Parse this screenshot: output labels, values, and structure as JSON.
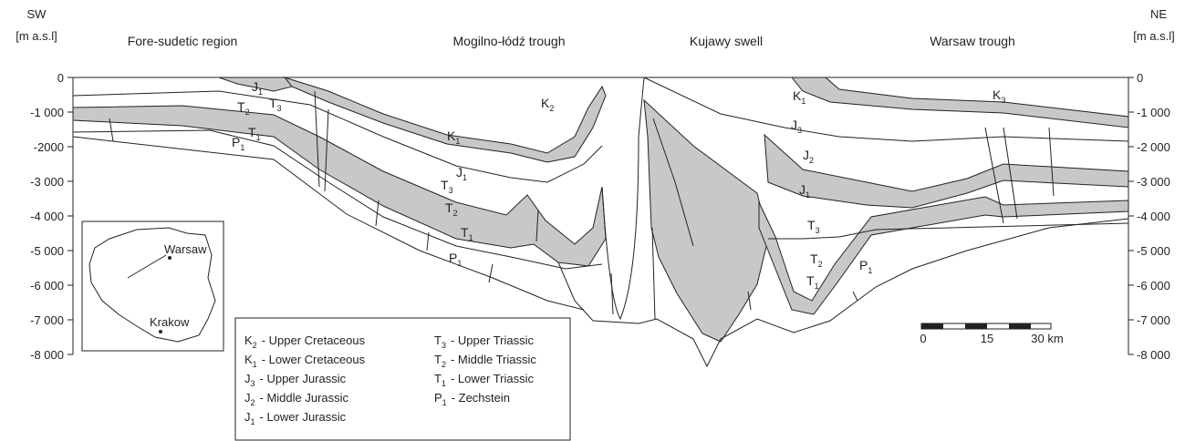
{
  "header": {
    "left": {
      "direction": "SW",
      "unit": "[m a.s.l]"
    },
    "right": {
      "direction": "NE",
      "unit": "[m a.s.l]"
    }
  },
  "regions": [
    "Fore-sudetic region",
    "Mogilno-łódź trough",
    "Kujawy swell",
    "Warsaw trough"
  ],
  "axis": {
    "left_ticks": [
      "0",
      "-1 000",
      "-2000",
      "-3 000",
      "-4 000",
      "-5 000",
      "-6 000",
      "-7 000",
      "-8 000"
    ],
    "right_ticks": [
      "0",
      "-1 000",
      "-2 000",
      "-3 000",
      "-4 000",
      "-5 000",
      "-6 000",
      "-7 000",
      "-8 000"
    ]
  },
  "section_labels": [
    {
      "symbol": "J",
      "sub": "1"
    },
    {
      "symbol": "T",
      "sub": "3"
    },
    {
      "symbol": "T",
      "sub": "2"
    },
    {
      "symbol": "T",
      "sub": "1"
    },
    {
      "symbol": "P",
      "sub": "1"
    },
    {
      "symbol": "K",
      "sub": "2"
    },
    {
      "symbol": "K",
      "sub": "1"
    },
    {
      "symbol": "J",
      "sub": "1"
    },
    {
      "symbol": "T",
      "sub": "3"
    },
    {
      "symbol": "T",
      "sub": "2"
    },
    {
      "symbol": "T",
      "sub": "1"
    },
    {
      "symbol": "P",
      "sub": "1"
    },
    {
      "symbol": "K",
      "sub": "1"
    },
    {
      "symbol": "J",
      "sub": "3"
    },
    {
      "symbol": "J",
      "sub": "2"
    },
    {
      "symbol": "J",
      "sub": "1"
    },
    {
      "symbol": "T",
      "sub": "3"
    },
    {
      "symbol": "T",
      "sub": "2"
    },
    {
      "symbol": "T",
      "sub": "1"
    },
    {
      "symbol": "P",
      "sub": "1"
    },
    {
      "symbol": "K",
      "sub": "3"
    }
  ],
  "legend": [
    {
      "symbol": "K",
      "sub": "2",
      "text": "- Upper Cretaceous"
    },
    {
      "symbol": "K",
      "sub": "1",
      "text": "- Lower Cretaceous"
    },
    {
      "symbol": "J",
      "sub": "3",
      "text": "- Upper Jurassic"
    },
    {
      "symbol": "J",
      "sub": "2",
      "text": "- Middle Jurassic"
    },
    {
      "symbol": "J",
      "sub": "1",
      "text": "- Lower Jurassic"
    },
    {
      "symbol": "T",
      "sub": "3",
      "text": "- Upper Triassic"
    },
    {
      "symbol": "T",
      "sub": "2",
      "text": "- Middle Triassic"
    },
    {
      "symbol": "T",
      "sub": "1",
      "text": "- Lower Triassic"
    },
    {
      "symbol": "P",
      "sub": "1",
      "text": "- Zechstein"
    }
  ],
  "map": {
    "cities": [
      "Warsaw",
      "Krakow"
    ]
  },
  "scale": {
    "labels": [
      "0",
      "15",
      "30 km"
    ]
  }
}
